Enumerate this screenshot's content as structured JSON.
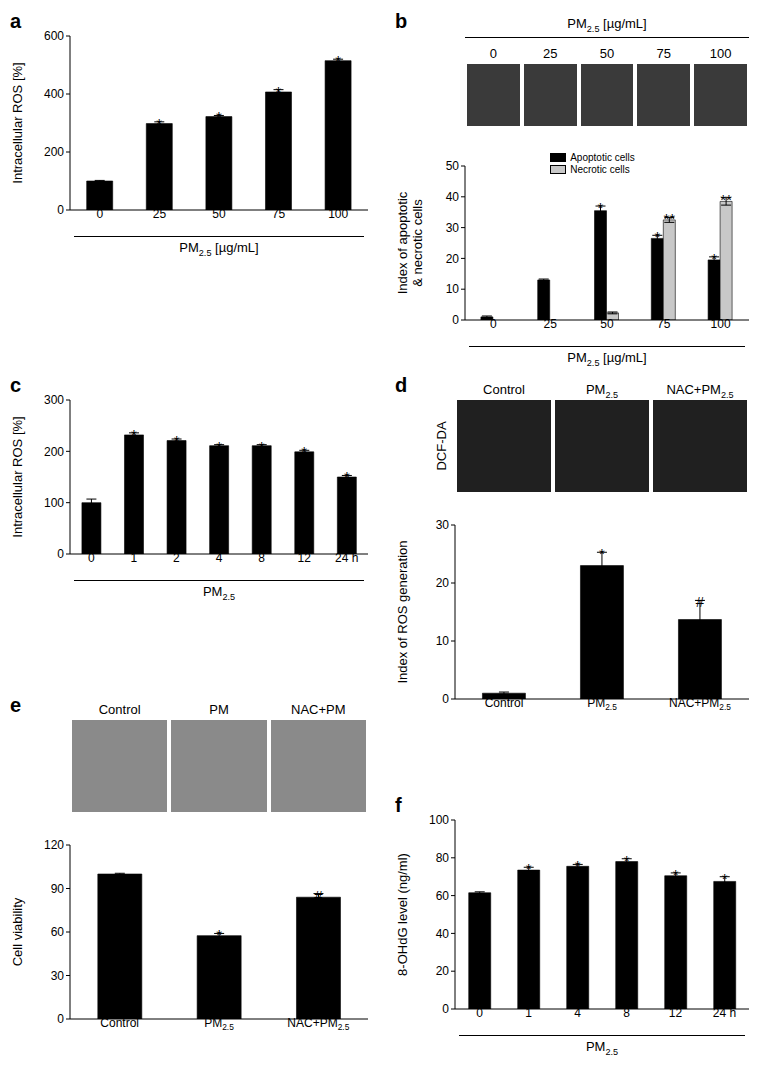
{
  "chart_data": [
    {
      "panel": "a",
      "type": "bar",
      "categories": [
        "0",
        "25",
        "50",
        "75",
        "100"
      ],
      "xlabel": "PM2.5 [µg/mL]",
      "ylabel": [
        "Intracellular ROS [%]"
      ],
      "ylim": [
        0,
        600
      ],
      "yticks": [
        0,
        200,
        400,
        600
      ],
      "series": [
        {
          "color": "#000000",
          "values": [
            100,
            298,
            322,
            407,
            515
          ],
          "errors": [
            2,
            6,
            4,
            8,
            5
          ],
          "marks": [
            null,
            "*",
            "*",
            "*",
            "*"
          ]
        }
      ]
    },
    {
      "panel": "b",
      "type": "bar",
      "header": "PM2.5 [µg/mL]",
      "image_labels": [
        "0",
        "25",
        "50",
        "75",
        "100"
      ],
      "categories": [
        "0",
        "25",
        "50",
        "75",
        "100"
      ],
      "xlabel": "PM2.5 [µg/mL]",
      "ylabel": [
        "Index of apoptotic",
        "& necrotic cells"
      ],
      "ylim": [
        0,
        50
      ],
      "yticks": [
        0,
        10,
        20,
        30,
        40,
        50
      ],
      "legend": "top",
      "series": [
        {
          "name": "Apoptotic cells",
          "color": "#000000",
          "values": [
            1,
            13,
            35.5,
            26.5,
            19.5
          ],
          "errors": [
            0.3,
            0.3,
            1.5,
            1,
            1
          ],
          "marks": [
            null,
            null,
            "*",
            "*",
            "*"
          ]
        },
        {
          "name": "Necrotic cells",
          "color": "#c8c8c8",
          "values": [
            0,
            0,
            2.3,
            32.5,
            38.5
          ],
          "errors": [
            0,
            0,
            0.3,
            0.8,
            1.2
          ],
          "marks": [
            null,
            null,
            null,
            "**",
            "**"
          ]
        }
      ]
    },
    {
      "panel": "c",
      "type": "bar",
      "categories": [
        "0",
        "1",
        "2",
        "4",
        "8",
        "12",
        "24 h"
      ],
      "xlabel": "PM2.5",
      "ylabel": [
        "Intracellular ROS [%]"
      ],
      "ylim": [
        0,
        300
      ],
      "yticks": [
        0,
        100,
        200,
        300
      ],
      "series": [
        {
          "color": "#000000",
          "values": [
            100,
            232,
            221,
            211,
            211,
            199,
            150
          ],
          "errors": [
            7,
            4,
            3,
            2,
            2,
            3,
            3
          ],
          "marks": [
            null,
            "*",
            "*",
            "*",
            "*",
            "*",
            "*"
          ]
        }
      ]
    },
    {
      "panel": "d",
      "type": "bar",
      "image_labels": [
        "Control",
        "PM2.5",
        "NAC+PM2.5"
      ],
      "image_side_label": "DCF-DA",
      "categories": [
        "Control",
        "PM2.5",
        "NAC+PM2.5"
      ],
      "ylabel": [
        "Index of ROS generation"
      ],
      "ylim": [
        0,
        30
      ],
      "yticks": [
        0,
        10,
        20,
        30
      ],
      "series": [
        {
          "color": "#000000",
          "values": [
            1,
            23,
            13.7
          ],
          "errors": [
            0.2,
            2.3,
            3.3
          ],
          "marks": [
            null,
            "*",
            "#"
          ]
        }
      ]
    },
    {
      "panel": "e",
      "type": "bar",
      "image_labels": [
        "Control",
        "PM",
        "NAC+PM"
      ],
      "categories": [
        "Control",
        "PM2.5",
        "NAC+PM2.5"
      ],
      "ylabel": [
        "Cell viability"
      ],
      "ylim": [
        0,
        120
      ],
      "yticks": [
        0,
        30,
        60,
        90,
        120
      ],
      "series": [
        {
          "color": "#000000",
          "values": [
            100,
            57.5,
            84
          ],
          "errors": [
            0.5,
            1.5,
            2.5
          ],
          "marks": [
            null,
            "*",
            "#"
          ]
        }
      ]
    },
    {
      "panel": "f",
      "type": "bar",
      "categories": [
        "0",
        "1",
        "4",
        "8",
        "12",
        "24 h"
      ],
      "xlabel": "PM2.5",
      "ylabel": [
        "8-OHdG level (ng/ml)"
      ],
      "ylim": [
        0,
        100
      ],
      "yticks": [
        0,
        20,
        40,
        60,
        80,
        100
      ],
      "series": [
        {
          "color": "#000000",
          "values": [
            61.5,
            73.5,
            75.5,
            78,
            70.5,
            67.5
          ],
          "errors": [
            0.5,
            1.5,
            1,
            1.5,
            1.5,
            2.5
          ],
          "marks": [
            null,
            "*",
            "*",
            "*",
            "*",
            "*"
          ]
        }
      ]
    }
  ]
}
